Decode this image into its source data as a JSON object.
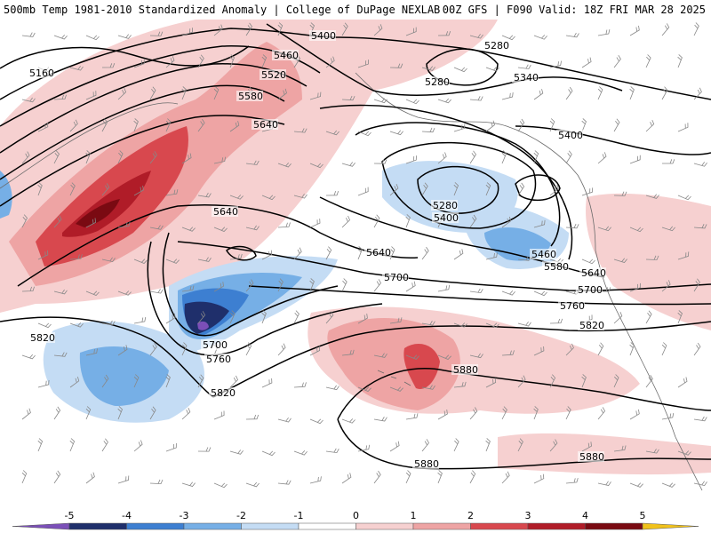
{
  "header": {
    "title_left": "500mb Temp 1981-2010 Standardized Anomaly | College of DuPage NEXLAB",
    "title_right": "00Z GFS | F090 Valid: 18Z FRI MAR 28 2025"
  },
  "colors": {
    "neg5": "#7b4fb8",
    "neg4": "#1f2f6b",
    "neg3": "#3d7fd1",
    "neg2": "#76afe6",
    "neg1": "#c4dcf4",
    "zero": "#ffffff",
    "pos1": "#f6d0d0",
    "pos2": "#eea4a4",
    "pos3": "#d8484e",
    "pos4": "#b01c28",
    "pos5": "#7a0a12",
    "pos6": "#f1c21b",
    "contour": "#000000",
    "coast": "#6b6b6b"
  },
  "colorbar": {
    "ticks": [
      "-5",
      "-4",
      "-3",
      "-2",
      "-1",
      "0",
      "1",
      "2",
      "3",
      "4",
      "5"
    ]
  },
  "contour_labels": [
    {
      "id": "c5400-n",
      "text": "5400"
    },
    {
      "id": "c5280-ne",
      "text": "5280"
    },
    {
      "id": "c5160-w",
      "text": "5160"
    },
    {
      "id": "c5460-n",
      "text": "5460"
    },
    {
      "id": "c5520-n",
      "text": "5520"
    },
    {
      "id": "c5280-ne2",
      "text": "5280"
    },
    {
      "id": "c5340-ne",
      "text": "5340"
    },
    {
      "id": "c5580-n",
      "text": "5580"
    },
    {
      "id": "c5640-nc",
      "text": "5640"
    },
    {
      "id": "c5400-e",
      "text": "5400"
    },
    {
      "id": "c5640-c",
      "text": "5640"
    },
    {
      "id": "c5280-low",
      "text": "5280"
    },
    {
      "id": "c5400-low",
      "text": "5400"
    },
    {
      "id": "c5460-e",
      "text": "5460"
    },
    {
      "id": "c5580-e",
      "text": "5580"
    },
    {
      "id": "c5640-ce",
      "text": "5640"
    },
    {
      "id": "c5640-e",
      "text": "5640"
    },
    {
      "id": "c5700-c",
      "text": "5700"
    },
    {
      "id": "c5700-e",
      "text": "5700"
    },
    {
      "id": "c5760-e",
      "text": "5760"
    },
    {
      "id": "c5820-w",
      "text": "5820"
    },
    {
      "id": "c5700-sw",
      "text": "5700"
    },
    {
      "id": "c5760-sw",
      "text": "5760"
    },
    {
      "id": "c5820-e",
      "text": "5820"
    },
    {
      "id": "c5880-c",
      "text": "5880"
    },
    {
      "id": "c5820-sw",
      "text": "5820"
    },
    {
      "id": "c5880-s",
      "text": "5880"
    },
    {
      "id": "c5880-se",
      "text": "5880"
    }
  ]
}
